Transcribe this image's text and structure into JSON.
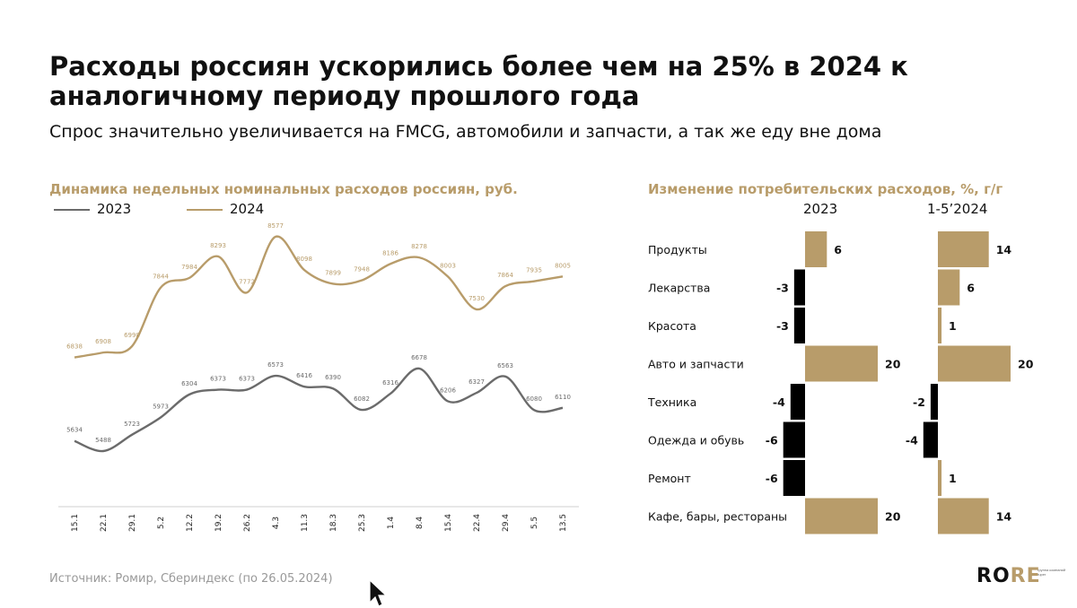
{
  "header": {
    "title": "Расходы россиян ускорились более чем на 25% в 2024 к аналогичному периоду прошлого года",
    "subtitle": "Спрос значительно увеличивается на FMCG, автомобили и запчасти, а так же еду вне дома"
  },
  "colors": {
    "gold": "#b89c6a",
    "grey": "#6b6b6b",
    "black": "#000000"
  },
  "chart_data": [
    {
      "type": "line",
      "title": "Динамика недельных номинальных расходов россиян, руб.",
      "categories": [
        "15.1",
        "22.1",
        "29.1",
        "5.2",
        "12.2",
        "19.2",
        "26.2",
        "4.3",
        "11.3",
        "18.3",
        "25.3",
        "1.4",
        "8.4",
        "15.4",
        "22.4",
        "29.4",
        "5.5",
        "13.5"
      ],
      "series": [
        {
          "name": "2023",
          "color": "#6b6b6b",
          "values": [
            5634,
            5488,
            5723,
            5973,
            6304,
            6373,
            6373,
            6573,
            6416,
            6390,
            6082,
            6316,
            6678,
            6206,
            6327,
            6563,
            6080,
            6110
          ]
        },
        {
          "name": "2024",
          "color": "#b89c6a",
          "values": [
            6838,
            6908,
            6998,
            7844,
            7984,
            8293,
            7772,
            8577,
            8098,
            7899,
            7948,
            8186,
            8278,
            8003,
            7530,
            7864,
            7935,
            8005
          ]
        }
      ],
      "legend": "top-left"
    },
    {
      "type": "bar",
      "title": "Изменение потребительских расходов, %, г/г",
      "categories": [
        "Продукты",
        "Лекарства",
        "Красота",
        "Авто и запчасти",
        "Техника",
        "Одежда и обувь",
        "Ремонт",
        "Кафе, бары, рестораны"
      ],
      "series": [
        {
          "name": "2023",
          "values": [
            6,
            -3,
            -3,
            20,
            -4,
            -6,
            -6,
            20
          ]
        },
        {
          "name": "1-5’2024",
          "values": [
            14,
            6,
            1,
            20,
            -2,
            -4,
            1,
            14
          ]
        }
      ],
      "positive_color": "#b89c6a",
      "negative_color": "#000000"
    }
  ],
  "footer": {
    "source": "Источник: Ромир, Сбериндекс (по 26.05.2024)",
    "logo_a": "RO",
    "logo_b": "RE",
    "logo_sub": "группа компаний ruper"
  }
}
